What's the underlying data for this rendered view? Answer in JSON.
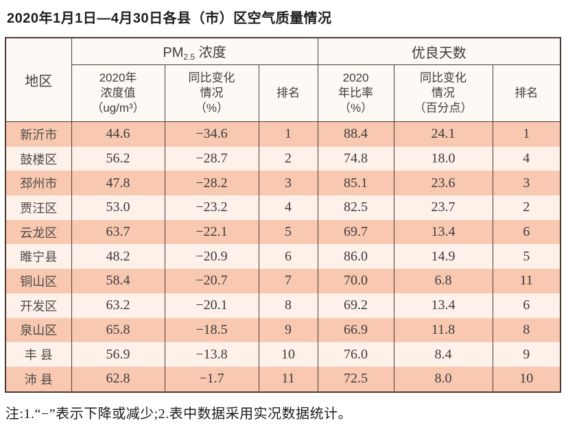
{
  "title": "2020年1月1日—4月30日各县（市）区空气质量情况",
  "table": {
    "region_header": "地区",
    "group_headers": {
      "pm25_prefix": "PM",
      "pm25_sub": "2.5",
      "pm25_suffix": " 浓度",
      "good_days": "优良天数"
    },
    "sub_headers": {
      "pm_value": "2020年\n浓度值\n（ug/m³）",
      "pm_change": "同比变化\n情况\n（%）",
      "pm_rank": "排名",
      "gd_ratio": "2020\n年比率\n（%）",
      "gd_change": "同比变化\n情况\n（百分点）",
      "gd_rank": "排名"
    },
    "rows": [
      {
        "region": "新沂市",
        "pm_value": "44.6",
        "pm_change": "−34.6",
        "pm_rank": "1",
        "gd_ratio": "88.4",
        "gd_change": "24.1",
        "gd_rank": "1"
      },
      {
        "region": "鼓楼区",
        "pm_value": "56.2",
        "pm_change": "−28.7",
        "pm_rank": "2",
        "gd_ratio": "74.8",
        "gd_change": "18.0",
        "gd_rank": "4"
      },
      {
        "region": "邳州市",
        "pm_value": "47.8",
        "pm_change": "−28.2",
        "pm_rank": "3",
        "gd_ratio": "85.1",
        "gd_change": "23.6",
        "gd_rank": "3"
      },
      {
        "region": "贾汪区",
        "pm_value": "53.0",
        "pm_change": "−23.2",
        "pm_rank": "4",
        "gd_ratio": "82.5",
        "gd_change": "23.7",
        "gd_rank": "2"
      },
      {
        "region": "云龙区",
        "pm_value": "63.7",
        "pm_change": "−22.1",
        "pm_rank": "5",
        "gd_ratio": "69.7",
        "gd_change": "13.4",
        "gd_rank": "6"
      },
      {
        "region": "睢宁县",
        "pm_value": "48.2",
        "pm_change": "−20.9",
        "pm_rank": "6",
        "gd_ratio": "86.0",
        "gd_change": "14.9",
        "gd_rank": "5"
      },
      {
        "region": "铜山区",
        "pm_value": "58.4",
        "pm_change": "−20.7",
        "pm_rank": "7",
        "gd_ratio": "70.0",
        "gd_change": "6.8",
        "gd_rank": "11"
      },
      {
        "region": "开发区",
        "pm_value": "63.2",
        "pm_change": "−20.1",
        "pm_rank": "8",
        "gd_ratio": "69.2",
        "gd_change": "13.4",
        "gd_rank": "6"
      },
      {
        "region": "泉山区",
        "pm_value": "65.8",
        "pm_change": "−18.5",
        "pm_rank": "9",
        "gd_ratio": "66.9",
        "gd_change": "11.8",
        "gd_rank": "8"
      },
      {
        "region": "丰 县",
        "pm_value": "56.9",
        "pm_change": "−13.8",
        "pm_rank": "10",
        "gd_ratio": "76.0",
        "gd_change": "8.4",
        "gd_rank": "9"
      },
      {
        "region": "沛 县",
        "pm_value": "62.8",
        "pm_change": "−1.7",
        "pm_rank": "11",
        "gd_ratio": "72.5",
        "gd_change": "8.0",
        "gd_rank": "10"
      }
    ]
  },
  "note": "注:1.“−”表示下降或减少;2.表中数据采用实况数据统计。",
  "colors": {
    "row_odd": "#f9c8b1",
    "row_even": "#fdf1ea",
    "header_bg": "#fdfaf6",
    "border": "#4b3a33"
  }
}
